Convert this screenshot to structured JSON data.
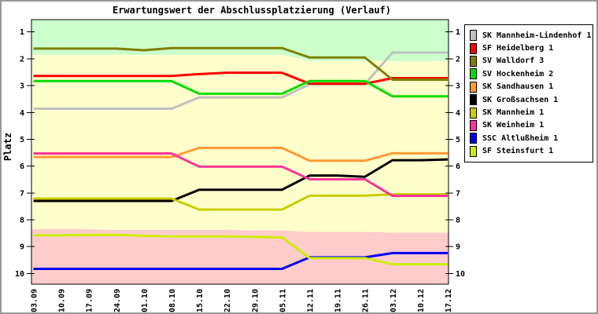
{
  "title": "Erwartungswert der Abschlussplatzierung (Verlauf)",
  "y_axis_label": "Platz",
  "frame": {
    "border_color": "#999999",
    "background": "#FFFFFF"
  },
  "colors": {
    "plot_background": "#FFFFCC",
    "promotion_zone": "#CCFFCC",
    "relegation_zone": "#FFCCCC",
    "axis": "#000000",
    "legend_background": "#FFFFFF",
    "legend_border": "#000000"
  },
  "chart_data": {
    "type": "line",
    "title": "Erwartungswert der Abschlussplatzierung (Verlauf)",
    "xlabel": "",
    "ylabel": "Platz",
    "y_inverted": true,
    "ylim": [
      0.54,
      10.4
    ],
    "y_ticks": [
      1,
      2,
      3,
      4,
      5,
      6,
      7,
      8,
      9,
      10
    ],
    "grid": false,
    "legend_position": "right",
    "x_labels": [
      "03.09",
      "10.09",
      "17.09",
      "24.09",
      "01.10",
      "08.10",
      "15.10",
      "22.10",
      "29.10",
      "05.11",
      "12.11",
      "19.11",
      "26.11",
      "03.12",
      "10.12",
      "17.12"
    ],
    "series": [
      {
        "name": "SK Mannheim-Lindenhof 1",
        "color": "#C0C0C0",
        "values": [
          3.86,
          3.86,
          3.86,
          3.86,
          3.86,
          3.86,
          3.44,
          3.44,
          3.44,
          3.44,
          2.95,
          2.95,
          2.95,
          1.77,
          1.77,
          1.77
        ]
      },
      {
        "name": "SF Heidelberg 1",
        "color": "#FF0000",
        "values": [
          2.64,
          2.64,
          2.64,
          2.64,
          2.64,
          2.64,
          2.57,
          2.52,
          2.52,
          2.52,
          2.93,
          2.93,
          2.93,
          2.72,
          2.72,
          2.72
        ]
      },
      {
        "name": "SV Walldorf 3",
        "color": "#808000",
        "values": [
          1.62,
          1.62,
          1.62,
          1.62,
          1.68,
          1.6,
          1.6,
          1.6,
          1.6,
          1.6,
          1.95,
          1.95,
          1.95,
          2.78,
          2.78,
          2.78
        ]
      },
      {
        "name": "SV Hockenheim 2",
        "color": "#00DD00",
        "values": [
          2.83,
          2.83,
          2.83,
          2.83,
          2.83,
          2.83,
          3.3,
          3.3,
          3.3,
          3.3,
          2.83,
          2.83,
          2.83,
          3.4,
          3.4,
          3.4
        ]
      },
      {
        "name": "SK Sandhausen 1",
        "color": "#FF9933",
        "values": [
          5.66,
          5.66,
          5.66,
          5.66,
          5.66,
          5.66,
          5.32,
          5.32,
          5.32,
          5.32,
          5.8,
          5.8,
          5.8,
          5.52,
          5.52,
          5.52
        ]
      },
      {
        "name": "SK Großsachsen 1",
        "color": "#000000",
        "values": [
          7.3,
          7.3,
          7.3,
          7.3,
          7.3,
          7.3,
          6.88,
          6.88,
          6.88,
          6.88,
          6.35,
          6.35,
          6.4,
          5.78,
          5.78,
          5.75
        ]
      },
      {
        "name": "SK Mannheim 1",
        "color": "#CCCC00",
        "values": [
          7.21,
          7.21,
          7.21,
          7.21,
          7.21,
          7.21,
          7.62,
          7.62,
          7.62,
          7.62,
          7.1,
          7.1,
          7.1,
          7.05,
          7.05,
          7.05
        ]
      },
      {
        "name": "SK Weinheim 1",
        "color": "#FF3399",
        "values": [
          5.53,
          5.53,
          5.53,
          5.53,
          5.53,
          5.53,
          6.02,
          6.02,
          6.02,
          6.02,
          6.49,
          6.49,
          6.49,
          7.11,
          7.11,
          7.11
        ]
      },
      {
        "name": "SSC Altlußheim 1",
        "color": "#0000EE",
        "values": [
          9.83,
          9.83,
          9.83,
          9.83,
          9.83,
          9.83,
          9.83,
          9.83,
          9.83,
          9.83,
          9.4,
          9.4,
          9.4,
          9.24,
          9.24,
          9.24
        ]
      },
      {
        "name": "SF Steinsfurt 1",
        "color": "#CCEE00",
        "values": [
          8.58,
          8.58,
          8.56,
          8.56,
          8.6,
          8.62,
          8.62,
          8.62,
          8.64,
          8.66,
          9.43,
          9.43,
          9.43,
          9.66,
          9.66,
          9.66
        ]
      }
    ],
    "zones": [
      {
        "name": "promotion-zone",
        "color": "#CCFFCC",
        "from": 0.54,
        "to_values": [
          1.85,
          1.85,
          1.85,
          1.85,
          1.85,
          1.85,
          1.85,
          1.85,
          1.85,
          1.85,
          2.08,
          2.08,
          2.08,
          2.08,
          2.08,
          2.08
        ]
      },
      {
        "name": "relegation-zone",
        "color": "#FFCCCC",
        "to": 10.4,
        "from_values": [
          8.35,
          8.35,
          8.35,
          8.38,
          8.38,
          8.38,
          8.38,
          8.38,
          8.4,
          8.4,
          8.45,
          8.45,
          8.45,
          8.48,
          8.48,
          8.48
        ]
      }
    ]
  }
}
